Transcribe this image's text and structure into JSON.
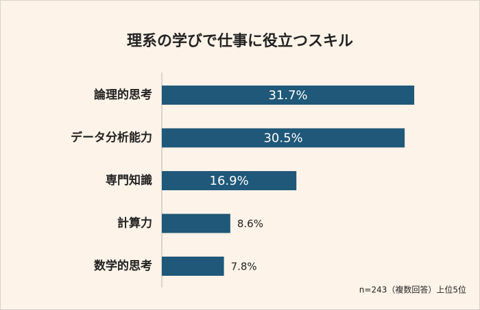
{
  "chart_data": {
    "type": "bar",
    "orientation": "horizontal",
    "title": "理系の学びで仕事に役立つスキル",
    "categories": [
      "論理的思考",
      "データ分析能力",
      "専門知識",
      "計算力",
      "数学的思考"
    ],
    "values": [
      31.7,
      30.5,
      16.9,
      8.6,
      7.8
    ],
    "value_labels": [
      "31.7%",
      "30.5%",
      "16.9%",
      "8.6%",
      "7.8%"
    ],
    "color": "#1f5878",
    "xlim": [
      0,
      36
    ],
    "note": "n=243（複数回答）上位5位"
  }
}
